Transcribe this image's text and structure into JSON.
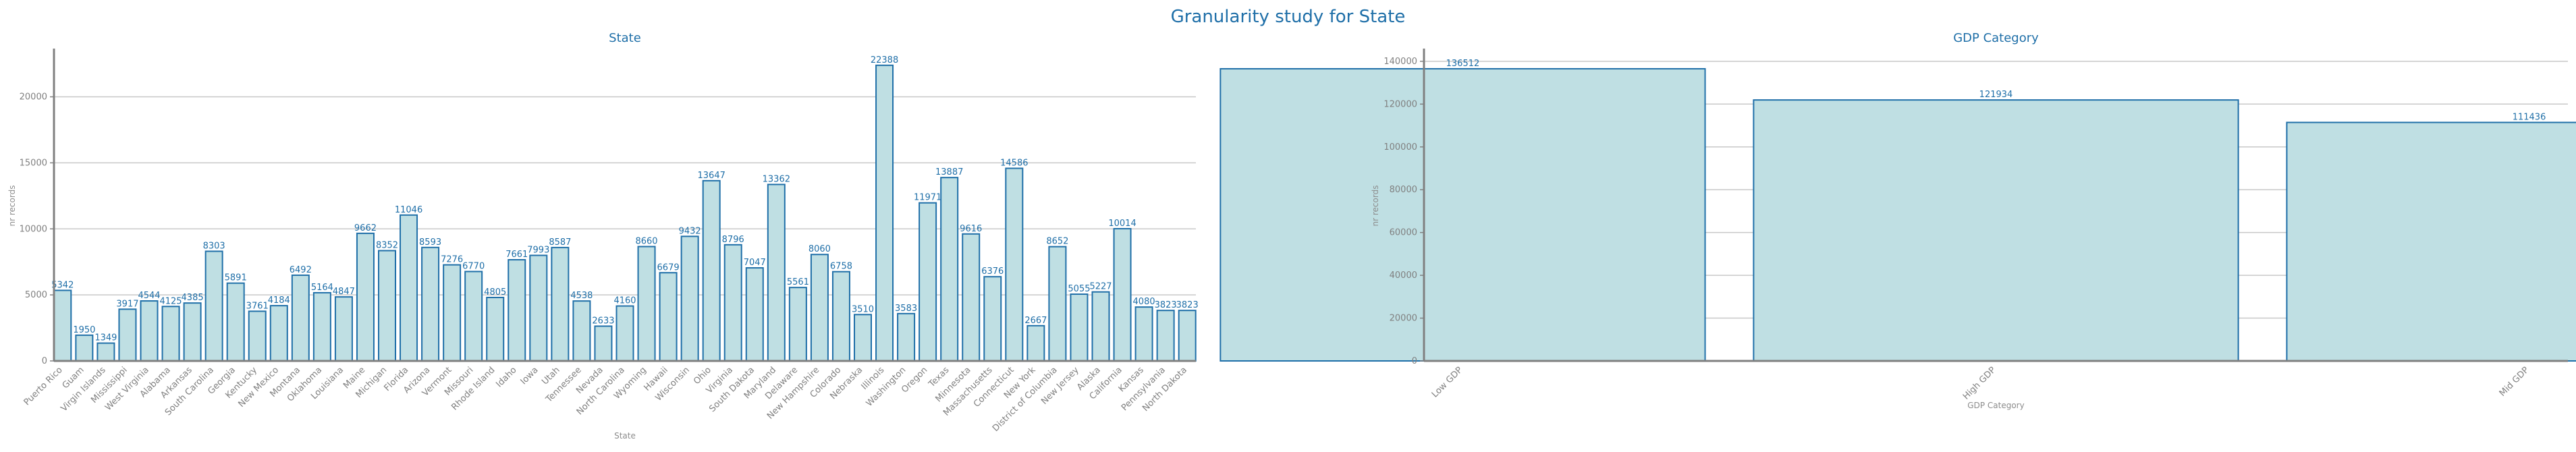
{
  "suptitle": "Granularity study for State",
  "colors": {
    "bar_fill": "#bfdfe3",
    "bar_edge": "#1f6fa8",
    "text": "#1f6fa8",
    "grid": "#c8c8c8",
    "axis": "#808080"
  },
  "chart_data": [
    {
      "type": "bar",
      "title": "State",
      "xlabel": "State",
      "ylabel": "nr records",
      "ylim": [
        0,
        23500
      ],
      "yticks": [
        0,
        5000,
        10000,
        15000,
        20000
      ],
      "grid": "horizontal",
      "categories": [
        "Puerto Rico",
        "Guam",
        "Virgin Islands",
        "Mississippi",
        "West Virginia",
        "Alabama",
        "Arkansas",
        "South Carolina",
        "Georgia",
        "Kentucky",
        "New Mexico",
        "Montana",
        "Oklahoma",
        "Louisiana",
        "Maine",
        "Michigan",
        "Florida",
        "Arizona",
        "Vermont",
        "Missouri",
        "Rhode Island",
        "Idaho",
        "Iowa",
        "Utah",
        "Tennessee",
        "Nevada",
        "North Carolina",
        "Wyoming",
        "Hawaii",
        "Wisconsin",
        "Ohio",
        "Virginia",
        "South Dakota",
        "Maryland",
        "Delaware",
        "New Hampshire",
        "Colorado",
        "Nebraska",
        "Illinois",
        "Washington",
        "Oregon",
        "Texas",
        "Minnesota",
        "Massachusetts",
        "Connecticut",
        "New York",
        "District of Columbia",
        "New Jersey",
        "Alaska",
        "California",
        "Kansas",
        "Pennsylvania",
        "North Dakota"
      ],
      "values": [
        5342,
        1950,
        1349,
        3917,
        4544,
        4125,
        4385,
        8303,
        5891,
        3761,
        4184,
        6492,
        5164,
        4847,
        9662,
        8352,
        11046,
        8593,
        7276,
        6770,
        4805,
        7661,
        7993,
        8587,
        4538,
        2633,
        4160,
        8660,
        6679,
        9432,
        13647,
        8796,
        7047,
        13362,
        5561,
        8060,
        6758,
        3510,
        22388,
        3583,
        11971,
        13887,
        9616,
        6376,
        14586,
        2667,
        8652,
        5055,
        5227,
        10014,
        4080,
        3823,
        3823
      ]
    },
    {
      "type": "bar",
      "title": "GDP Category",
      "xlabel": "GDP Category",
      "ylabel": "nr records",
      "ylim": [
        0,
        145000
      ],
      "yticks": [
        0,
        20000,
        40000,
        60000,
        80000,
        100000,
        120000,
        140000
      ],
      "grid": "horizontal",
      "categories": [
        "Low GDP",
        "High GDP",
        "Mid GDP"
      ],
      "values": [
        136512,
        121934,
        111436
      ]
    }
  ]
}
